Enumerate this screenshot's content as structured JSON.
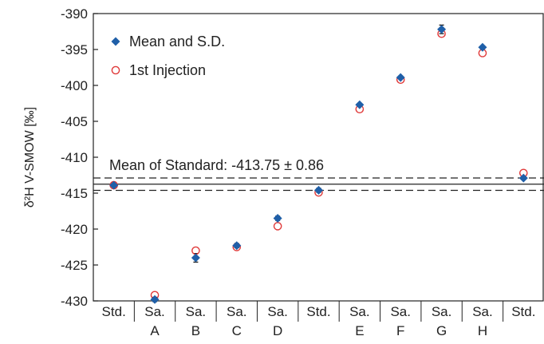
{
  "chart_data": {
    "type": "scatter",
    "ylabel": "δ²H V-SMOW [‰]",
    "ylim": [
      -430,
      -390
    ],
    "yticks": [
      -390,
      -395,
      -400,
      -405,
      -410,
      -415,
      -420,
      -425,
      -430
    ],
    "categories": [
      [
        "Std."
      ],
      [
        "Sa.",
        "A"
      ],
      [
        "Sa.",
        "B"
      ],
      [
        "Sa.",
        "C"
      ],
      [
        "Sa.",
        "D"
      ],
      [
        "Std."
      ],
      [
        "Sa.",
        "E"
      ],
      [
        "Sa.",
        "F"
      ],
      [
        "Sa.",
        "G"
      ],
      [
        "Sa.",
        "H"
      ],
      [
        "Std."
      ]
    ],
    "series": [
      {
        "name": "Mean and S.D.",
        "marker": "diamond",
        "color": "#1f5fa8",
        "values": [
          -413.9,
          -429.8,
          -424.0,
          -422.3,
          -418.5,
          -414.6,
          -402.7,
          -398.9,
          -392.2,
          -394.7,
          -412.9
        ],
        "sd": [
          0.2,
          0.3,
          0.6,
          0.3,
          0.3,
          0.3,
          0.2,
          0.2,
          0.6,
          0.2,
          0.2
        ]
      },
      {
        "name": "1st Injection",
        "marker": "open-circle",
        "color": "#e03a3a",
        "values": [
          -413.9,
          -429.2,
          -423.0,
          -422.5,
          -419.6,
          -414.9,
          -403.3,
          -399.2,
          -392.8,
          -395.5,
          -412.2
        ]
      }
    ],
    "reference_lines": {
      "mean": -413.75,
      "sd": 0.86,
      "label": "Mean of Standard: -413.75 ± 0.86"
    },
    "legend_position": "top-left",
    "grid": false
  }
}
